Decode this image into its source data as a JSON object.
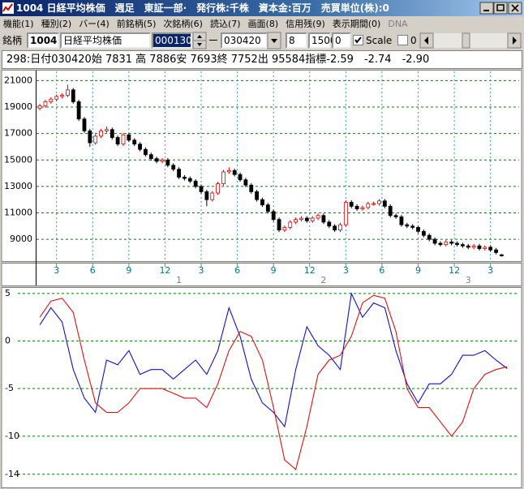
{
  "window": {
    "title": "1004 日経平均株価　週足　東証一部·　発行株:千株　資本金:百万　売買単位(株):0",
    "menu": [
      "機能(1)",
      "種別(2)",
      "バー(4)",
      "前銘柄(5)",
      "次銘柄(6)",
      "読込(7)",
      "画面(8)",
      "信用残(9)",
      "表示期間(0)",
      "DNA"
    ],
    "toolbar": {
      "label": "銘柄",
      "code": "1004",
      "name": "日経平均株価",
      "field": "000130",
      "dash": "ー",
      "date": "030420",
      "n1": "8",
      "n2": "1500",
      "n3": "0",
      "scale": "Scale",
      "n4": "0"
    },
    "info": "298:日付030420始 7831 高 7886安 7693終 7752出 95584指標-2.59　-2.74　-2.90"
  },
  "chart_data": [
    {
      "type": "candlestick",
      "up_color": "#e00000",
      "down_color": "#000000",
      "grid": true,
      "xgrid": true,
      "x": [
        0,
        2,
        4,
        6,
        8,
        10,
        12,
        14,
        16,
        18,
        20,
        22,
        24,
        26,
        28,
        30,
        32,
        34,
        36,
        38,
        40,
        42,
        44,
        46,
        48,
        50,
        52,
        54,
        56,
        58,
        60,
        62,
        64,
        66,
        68,
        70,
        72,
        74,
        76,
        78,
        80,
        82,
        84,
        86,
        88,
        90,
        92,
        94,
        96,
        98,
        100,
        102,
        104,
        106,
        108,
        110,
        112,
        114,
        116,
        118,
        120,
        122,
        124,
        126,
        128,
        130,
        132,
        134,
        136,
        138,
        140,
        142,
        144,
        146,
        148,
        150,
        152,
        154,
        156,
        158,
        160,
        162,
        164,
        166
      ],
      "open": [
        18900,
        19100,
        19400,
        19600,
        19800,
        19900,
        20300,
        19400,
        18100,
        17200,
        16300,
        16800,
        17200,
        17300,
        16700,
        16200,
        16900,
        16500,
        16200,
        15800,
        15400,
        15100,
        14900,
        15000,
        14600,
        14300,
        13700,
        13600,
        13400,
        13000,
        12600,
        12000,
        12500,
        13200,
        14100,
        14200,
        13900,
        13500,
        13100,
        12600,
        12000,
        11600,
        11100,
        10500,
        9700,
        9900,
        10300,
        10500,
        10600,
        10400,
        10600,
        10800,
        10300,
        10000,
        9700,
        10100,
        11800,
        11500,
        11300,
        11400,
        11700,
        11700,
        11900,
        11500,
        10800,
        10700,
        10100,
        10000,
        9900,
        9600,
        9300,
        9000,
        8700,
        8600,
        8800,
        8700,
        8600,
        8500,
        8400,
        8500,
        8300,
        8400,
        8200,
        7831
      ],
      "high": [
        19250,
        19550,
        19750,
        19950,
        20050,
        20700,
        20450,
        19550,
        18250,
        17350,
        16950,
        17350,
        17550,
        17450,
        16850,
        17050,
        17050,
        16650,
        16350,
        15950,
        15550,
        15250,
        15150,
        15150,
        14750,
        14450,
        13850,
        13750,
        13550,
        13150,
        12750,
        12650,
        13350,
        14250,
        14450,
        14350,
        14050,
        13650,
        13250,
        12750,
        12150,
        11750,
        11250,
        10650,
        10050,
        10450,
        10650,
        10750,
        10750,
        10750,
        10950,
        10950,
        10450,
        10150,
        10250,
        11950,
        11950,
        11650,
        11550,
        11850,
        11850,
        12050,
        12050,
        11650,
        10950,
        10850,
        10250,
        10150,
        10050,
        9750,
        9450,
        9150,
        8850,
        8950,
        8950,
        8850,
        8750,
        8650,
        8650,
        8650,
        8550,
        8550,
        8350,
        7886
      ],
      "low": [
        18750,
        18950,
        19250,
        19450,
        19650,
        19750,
        19250,
        17950,
        17050,
        16000,
        16150,
        16650,
        17050,
        16550,
        16050,
        16050,
        16350,
        16050,
        15650,
        15250,
        14950,
        14750,
        14750,
        14450,
        14150,
        13550,
        13450,
        13250,
        12850,
        12450,
        11500,
        11850,
        12350,
        13050,
        13950,
        13750,
        13350,
        12950,
        12450,
        11850,
        11450,
        10950,
        10350,
        9550,
        9550,
        9750,
        10150,
        10350,
        10250,
        10250,
        10450,
        10150,
        9850,
        9550,
        9550,
        9950,
        11350,
        11150,
        11150,
        11250,
        11550,
        11550,
        11350,
        10650,
        10550,
        9950,
        9850,
        9750,
        9450,
        9150,
        8850,
        8550,
        8450,
        8450,
        8550,
        8450,
        8350,
        8250,
        8250,
        8150,
        8150,
        8050,
        7850,
        7693
      ],
      "close": [
        19100,
        19400,
        19600,
        19800,
        19900,
        20300,
        19400,
        18100,
        17200,
        16300,
        16800,
        17200,
        17300,
        16700,
        16200,
        16900,
        16500,
        16200,
        15800,
        15400,
        15100,
        14900,
        15000,
        14600,
        14300,
        13700,
        13600,
        13400,
        13000,
        12600,
        12000,
        12500,
        13200,
        14100,
        14200,
        13900,
        13500,
        13100,
        12600,
        12000,
        11600,
        11100,
        10500,
        9700,
        9900,
        10300,
        10500,
        10600,
        10400,
        10600,
        10800,
        10300,
        10000,
        9700,
        10100,
        11800,
        11500,
        11300,
        11400,
        11700,
        11700,
        11900,
        11500,
        10800,
        10700,
        10100,
        10000,
        9900,
        9600,
        9300,
        9000,
        8700,
        8600,
        8800,
        8700,
        8600,
        8500,
        8400,
        8500,
        8300,
        8400,
        8200,
        8000,
        7752
      ],
      "xlim": [
        -1.2,
        172.3
      ],
      "ylim": [
        7350,
        21700
      ],
      "yticks": [
        21000,
        19000,
        17000,
        15000,
        13000,
        11000,
        9000
      ],
      "xticks": [
        {
          "value": 6,
          "label": "3"
        },
        {
          "value": 19,
          "label": "6"
        },
        {
          "value": 32,
          "label": "9"
        },
        {
          "value": 45,
          "label": "12"
        },
        {
          "value": 58,
          "label": "3"
        },
        {
          "value": 71,
          "label": "6"
        },
        {
          "value": 84,
          "label": "9"
        },
        {
          "value": 97,
          "label": "12"
        },
        {
          "value": 110,
          "label": "3"
        },
        {
          "value": 123,
          "label": "6"
        },
        {
          "value": 136,
          "label": "9"
        },
        {
          "value": 149,
          "label": "12"
        },
        {
          "value": 162,
          "label": "3"
        }
      ],
      "year_ticks": [
        {
          "value": 50,
          "label": "1"
        },
        {
          "value": 102,
          "label": "2"
        },
        {
          "value": 154,
          "label": "3"
        }
      ]
    },
    {
      "type": "line",
      "grid": true,
      "xgrid": false,
      "x": [
        0,
        4,
        8,
        12,
        16,
        20,
        24,
        28,
        32,
        36,
        40,
        44,
        48,
        52,
        56,
        60,
        64,
        68,
        72,
        76,
        80,
        84,
        88,
        92,
        96,
        100,
        104,
        108,
        112,
        116,
        120,
        124,
        128,
        132,
        136,
        140,
        144,
        148,
        152,
        156,
        160,
        164,
        168
      ],
      "series": [
        {
          "color": "#1010d0",
          "values": [
            1.7,
            3.5,
            2.0,
            -3.0,
            -6.0,
            -7.5,
            -2.0,
            -2.5,
            -1.0,
            -3.5,
            -3.0,
            -3.0,
            -4.0,
            -3.0,
            -2.0,
            -3.5,
            -1.0,
            3.5,
            0.5,
            -4.0,
            -6.5,
            -7.5,
            -9.0,
            -3.0,
            1.5,
            -0.5,
            -1.5,
            -3.0,
            5.0,
            2.5,
            4.0,
            3.5,
            -1.0,
            -4.5,
            -6.5,
            -4.5,
            -4.5,
            -3.5,
            -1.5,
            -1.5,
            -1.0,
            -2.0,
            -2.9
          ]
        },
        {
          "color": "#e01010",
          "values": [
            2.5,
            4.2,
            4.5,
            3.0,
            -2.0,
            -6.5,
            -7.5,
            -7.5,
            -6.5,
            -5.0,
            -5.0,
            -5.0,
            -5.5,
            -6.0,
            -6.0,
            -7.0,
            -4.5,
            -1.0,
            1.0,
            0.5,
            -2.0,
            -7.0,
            -12.5,
            -13.5,
            -9.0,
            -3.5,
            -2.0,
            -1.5,
            0.5,
            4.0,
            4.8,
            4.5,
            1.0,
            -5.0,
            -7.0,
            -7.0,
            -8.5,
            -10.0,
            -8.5,
            -5.0,
            -3.5,
            -3.0,
            -2.7
          ]
        }
      ],
      "xlim": [
        -1.2,
        172.3
      ],
      "ylim": [
        -15.3,
        5.5
      ],
      "yticks": [
        5,
        0,
        -5,
        -10,
        -14
      ]
    }
  ]
}
